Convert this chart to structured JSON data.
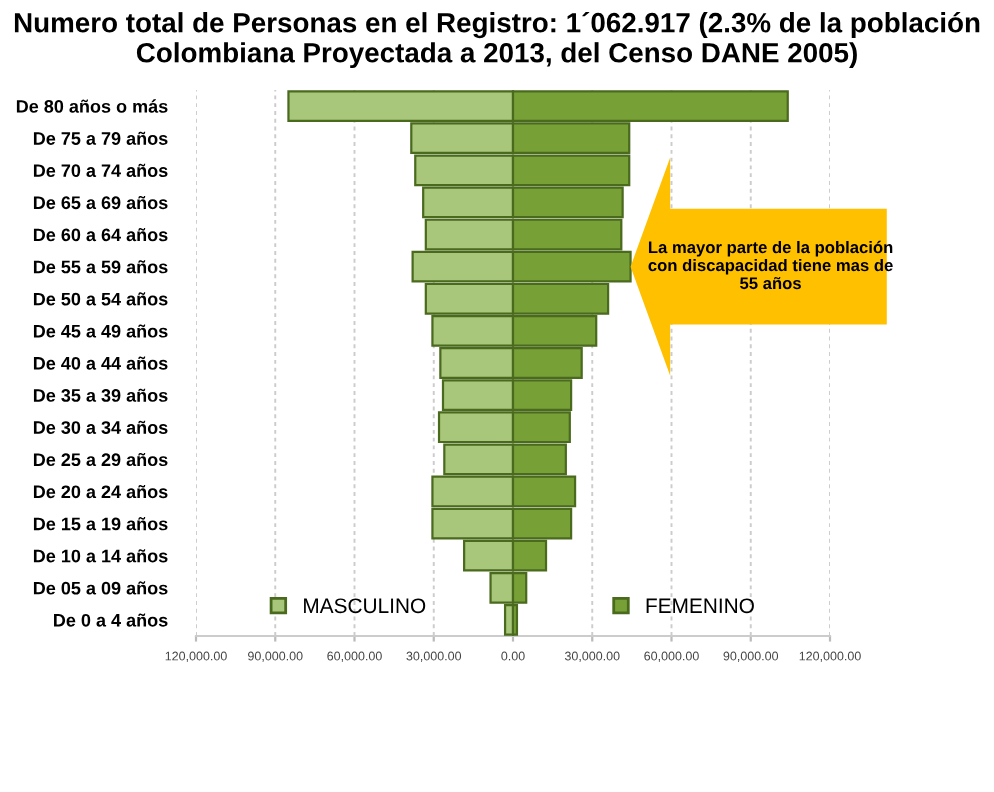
{
  "chart_data": {
    "type": "bar",
    "orientation": "horizontal",
    "title": "Numero total de Personas en el Registro: 1´062.917 (2.3% de la población Colombiana Proyectada a 2013, del Censo DANE 2005)",
    "categories": [
      "De 80 años o más",
      "De 75 a 79 años",
      "De 70 a 74 años",
      "De 65 a 69 años",
      "De 60 a 64 años",
      "De 55 a 59 años",
      "De 50 a 54 años",
      "De 45 a 49 años",
      "De 40 a 44 años",
      "De 35 a 39 años",
      "De 30 a 34 años",
      "De 25 a 29 años",
      "De 20 a 24 años",
      "De 15 a 19 años",
      "De 10 a 14 años",
      "De 05 a 09 años",
      "De 0 a 4 años"
    ],
    "series": [
      {
        "name": "MASCULINO",
        "color": "#a9c77a",
        "values": [
          -85000,
          -38500,
          -37000,
          -34000,
          -33000,
          -38000,
          -33000,
          -30500,
          -27500,
          -26500,
          -28000,
          -26000,
          -30500,
          -30500,
          -18500,
          -8500,
          -3000
        ]
      },
      {
        "name": "FEMENINO",
        "color": "#77a036",
        "values": [
          104000,
          44000,
          44000,
          41500,
          41000,
          44500,
          36000,
          31500,
          26000,
          22000,
          21500,
          20000,
          23500,
          22000,
          12500,
          5000,
          1500
        ]
      }
    ],
    "stacked": true,
    "xlim": [
      -120000,
      120000
    ],
    "xticks": [
      {
        "value": -120000,
        "label": "120,000.00"
      },
      {
        "value": -90000,
        "label": "90,000.00"
      },
      {
        "value": -60000,
        "label": "60,000.00"
      },
      {
        "value": -30000,
        "label": "30,000.00"
      },
      {
        "value": 0,
        "label": "0.00"
      },
      {
        "value": 30000,
        "label": "30,000.00"
      },
      {
        "value": 60000,
        "label": "60,000.00"
      },
      {
        "value": 90000,
        "label": "90,000.00"
      },
      {
        "value": 120000,
        "label": "120,000.00"
      }
    ],
    "grid": "x",
    "legend": "bottom",
    "annotations": [
      {
        "text": "La mayor parte de la población con discapacidad tiene mas de 55 años",
        "x": 44500,
        "y": "De 55 a 59 años"
      }
    ]
  }
}
